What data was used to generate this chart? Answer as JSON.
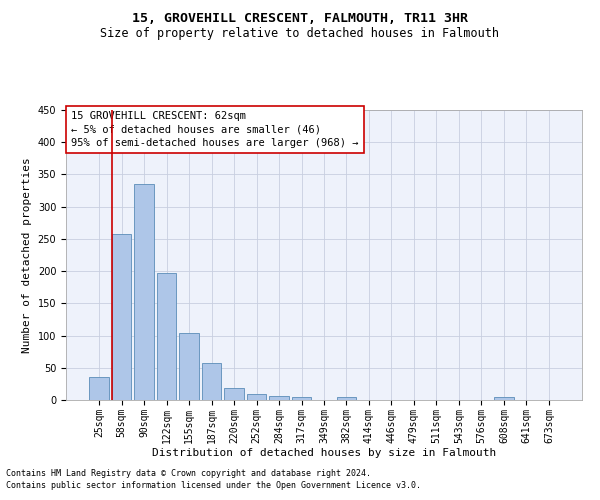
{
  "title": "15, GROVEHILL CRESCENT, FALMOUTH, TR11 3HR",
  "subtitle": "Size of property relative to detached houses in Falmouth",
  "xlabel": "Distribution of detached houses by size in Falmouth",
  "ylabel": "Number of detached properties",
  "categories": [
    "25sqm",
    "58sqm",
    "90sqm",
    "122sqm",
    "155sqm",
    "187sqm",
    "220sqm",
    "252sqm",
    "284sqm",
    "317sqm",
    "349sqm",
    "382sqm",
    "414sqm",
    "446sqm",
    "479sqm",
    "511sqm",
    "543sqm",
    "576sqm",
    "608sqm",
    "641sqm",
    "673sqm"
  ],
  "values": [
    35,
    258,
    335,
    197,
    104,
    57,
    19,
    10,
    6,
    4,
    0,
    5,
    0,
    0,
    0,
    0,
    0,
    0,
    5,
    0,
    0
  ],
  "bar_color": "#aec6e8",
  "bar_edge_color": "#5b8db8",
  "ylim": [
    0,
    450
  ],
  "yticks": [
    0,
    50,
    100,
    150,
    200,
    250,
    300,
    350,
    400,
    450
  ],
  "annotation_box_text": [
    "15 GROVEHILL CRESCENT: 62sqm",
    "← 5% of detached houses are smaller (46)",
    "95% of semi-detached houses are larger (968) →"
  ],
  "vline_color": "#cc0000",
  "box_edge_color": "#cc0000",
  "footer_line1": "Contains HM Land Registry data © Crown copyright and database right 2024.",
  "footer_line2": "Contains public sector information licensed under the Open Government Licence v3.0.",
  "background_color": "#eef2fb",
  "grid_color": "#c8cfe0",
  "title_fontsize": 9.5,
  "subtitle_fontsize": 8.5,
  "ylabel_fontsize": 8,
  "xlabel_fontsize": 8,
  "tick_fontsize": 7,
  "annotation_fontsize": 7.5,
  "footer_fontsize": 6
}
